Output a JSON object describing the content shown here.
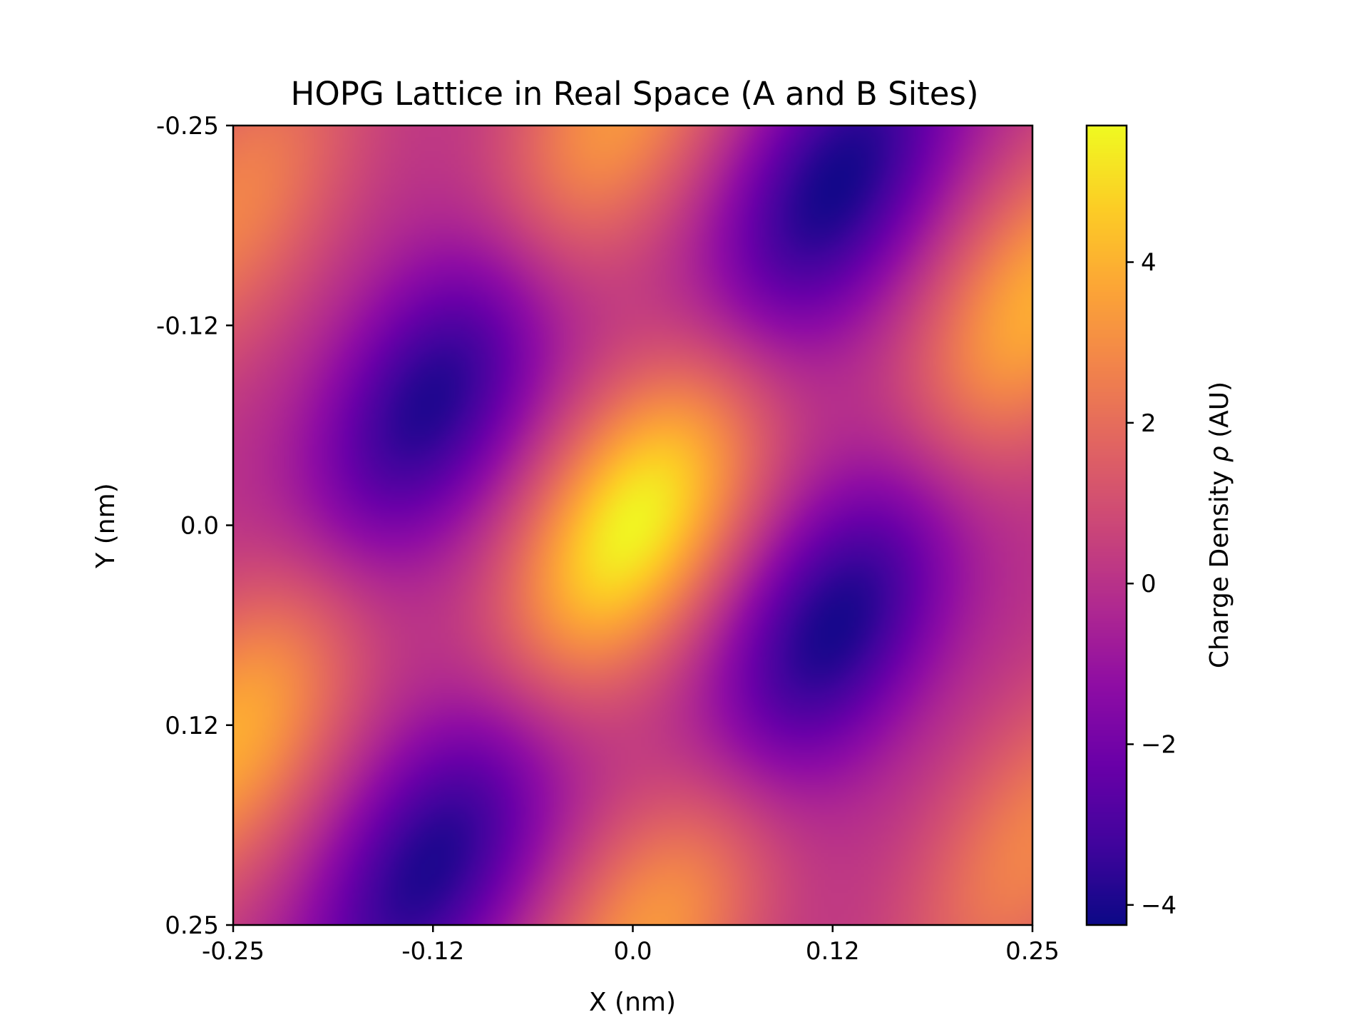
{
  "chart_data": {
    "type": "heatmap",
    "title": "HOPG Lattice in Real Space (A and B Sites)",
    "xlabel": "X (nm)",
    "ylabel": "Y (nm)",
    "xlim": [
      -0.25,
      0.25
    ],
    "ylim": [
      -0.25,
      0.25
    ],
    "y_inverted": true,
    "x_ticks": [
      {
        "value": -0.25,
        "label": "-0.25"
      },
      {
        "value": -0.125,
        "label": "-0.12"
      },
      {
        "value": 0.0,
        "label": "0.0"
      },
      {
        "value": 0.125,
        "label": "0.12"
      },
      {
        "value": 0.25,
        "label": "0.25"
      }
    ],
    "y_ticks": [
      {
        "value": -0.25,
        "label": "-0.25"
      },
      {
        "value": -0.125,
        "label": "-0.12"
      },
      {
        "value": 0.0,
        "label": "0.0"
      },
      {
        "value": 0.125,
        "label": "0.12"
      },
      {
        "value": 0.25,
        "label": "0.25"
      }
    ],
    "colormap": "plasma",
    "colorbar": {
      "label": "Charge Density ρ (AU)",
      "label_plain": "Charge Density ",
      "label_symbol": "ρ",
      "label_unit": " (AU)",
      "vmin": -4.25,
      "vmax": 5.7,
      "ticks": [
        {
          "value": -4,
          "label": "−4"
        },
        {
          "value": -2,
          "label": "−2"
        },
        {
          "value": 0,
          "label": "0"
        },
        {
          "value": 2,
          "label": "2"
        },
        {
          "value": 4,
          "label": "4"
        }
      ]
    },
    "features": [
      {
        "type": "max",
        "x": 0.0,
        "y": 0.0,
        "value": 5.7
      },
      {
        "type": "min",
        "x": -0.125,
        "y": -0.08,
        "value": -4.1
      },
      {
        "type": "min",
        "x": 0.125,
        "y": -0.21,
        "value": -4.2
      },
      {
        "type": "min",
        "x": 0.125,
        "y": 0.065,
        "value": -4.25
      },
      {
        "type": "min",
        "x": -0.125,
        "y": 0.21,
        "value": -4.0
      },
      {
        "type": "max",
        "x": 0.25,
        "y": -0.135,
        "value": 3.9
      },
      {
        "type": "max",
        "x": -0.25,
        "y": 0.13,
        "value": 3.9
      },
      {
        "type": "max",
        "x": -0.015,
        "y": -0.25,
        "value": 3.4
      },
      {
        "type": "max",
        "x": 0.015,
        "y": 0.25,
        "value": 3.4
      },
      {
        "type": "max",
        "x": -0.25,
        "y": -0.2,
        "value": 2.7
      },
      {
        "type": "max",
        "x": 0.25,
        "y": 0.2,
        "value": 2.7
      }
    ],
    "grid": false
  }
}
